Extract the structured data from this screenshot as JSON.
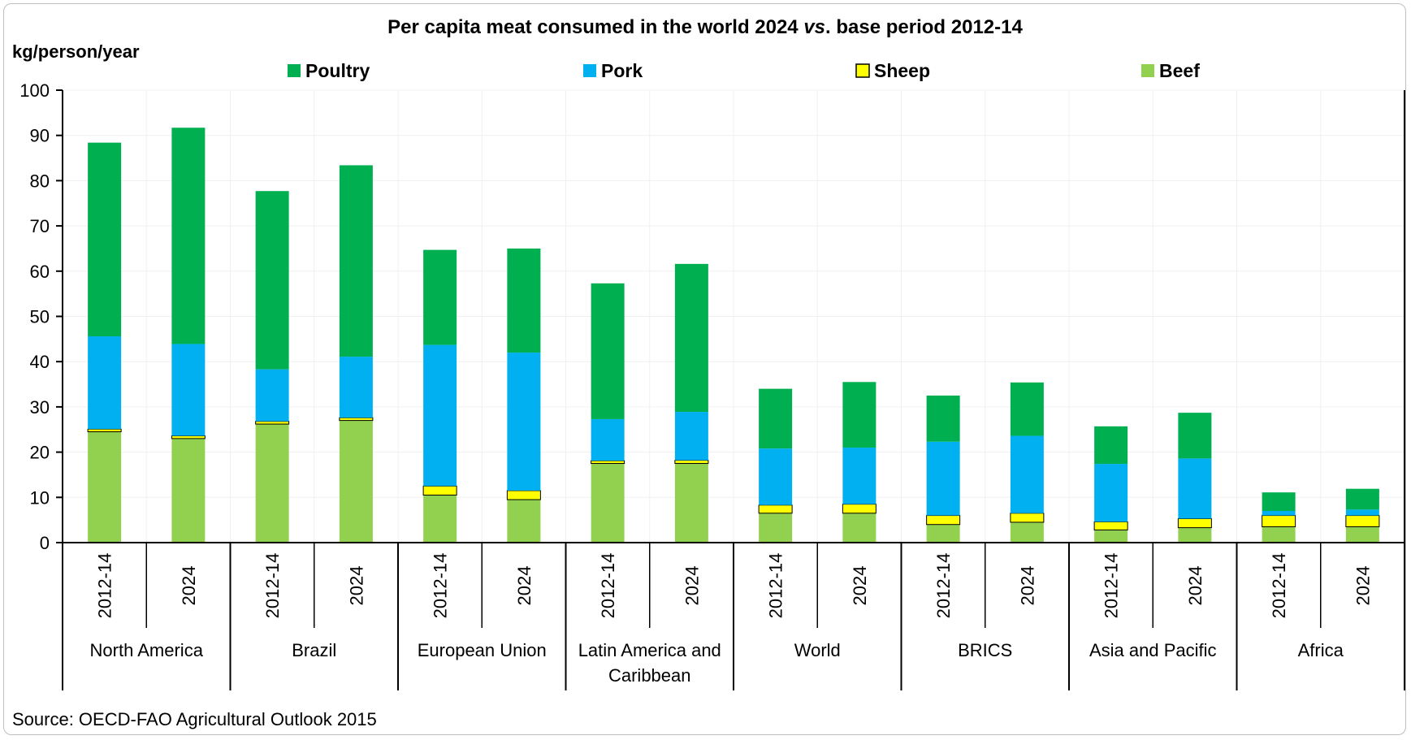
{
  "chart_data": {
    "type": "bar",
    "stacked": true,
    "title": "Per capita meat consumed in the world 2024",
    "title_italic": "vs",
    "title_rest": ". base period 2012-14",
    "ylabel": "kg/person/year",
    "ylim": [
      0,
      100
    ],
    "yticks": [
      "0",
      "10",
      "20",
      "30",
      "40",
      "50",
      "60",
      "70",
      "80",
      "90",
      "100"
    ],
    "source": "Source: OECD-FAO Agricultural Outlook 2015",
    "legend_position": "top",
    "groups": [
      {
        "name": "North America",
        "lines": [
          "North America"
        ],
        "periods": [
          "2012-14",
          "2024"
        ]
      },
      {
        "name": "Brazil",
        "lines": [
          "Brazil"
        ],
        "periods": [
          "2012-14",
          "2024"
        ]
      },
      {
        "name": "European Union",
        "lines": [
          "European Union"
        ],
        "periods": [
          "2012-14",
          "2024"
        ]
      },
      {
        "name": "Latin America and Caribbean",
        "lines": [
          "Latin America and",
          "Caribbean"
        ],
        "periods": [
          "2012-14",
          "2024"
        ]
      },
      {
        "name": "World",
        "lines": [
          "World"
        ],
        "periods": [
          "2012-14",
          "2024"
        ]
      },
      {
        "name": "BRICS",
        "lines": [
          "BRICS"
        ],
        "periods": [
          "2012-14",
          "2024"
        ]
      },
      {
        "name": "Asia and Pacific",
        "lines": [
          "Asia and Pacific"
        ],
        "periods": [
          "2012-14",
          "2024"
        ]
      },
      {
        "name": "Africa",
        "lines": [
          "Africa"
        ],
        "periods": [
          "2012-14",
          "2024"
        ]
      }
    ],
    "series": [
      {
        "name": "Beef",
        "color": "#92d050",
        "values": [
          24.5,
          23.0,
          26.2,
          27.0,
          10.5,
          9.5,
          17.5,
          17.5,
          6.5,
          6.5,
          4.0,
          4.5,
          2.8,
          3.3,
          3.5,
          3.5
        ]
      },
      {
        "name": "Sheep",
        "color": "#ffff00",
        "values": [
          0.6,
          0.6,
          0.6,
          0.6,
          2.0,
          2.0,
          0.6,
          0.7,
          1.8,
          2.0,
          2.0,
          2.0,
          1.8,
          2.0,
          2.5,
          2.5
        ]
      },
      {
        "name": "Pork",
        "color": "#00b0f0",
        "values": [
          20.5,
          20.3,
          11.5,
          13.5,
          31.2,
          30.5,
          9.2,
          10.7,
          12.5,
          12.5,
          16.3,
          17.1,
          12.8,
          13.3,
          1.0,
          1.3
        ]
      },
      {
        "name": "Poultry",
        "color": "#00b050",
        "values": [
          42.8,
          47.8,
          39.4,
          42.3,
          21.0,
          23.0,
          30.0,
          32.7,
          13.2,
          14.5,
          10.2,
          11.8,
          8.3,
          10.1,
          4.1,
          4.6
        ]
      }
    ],
    "legend_order": [
      "Poultry",
      "Pork",
      "Sheep",
      "Beef"
    ]
  }
}
